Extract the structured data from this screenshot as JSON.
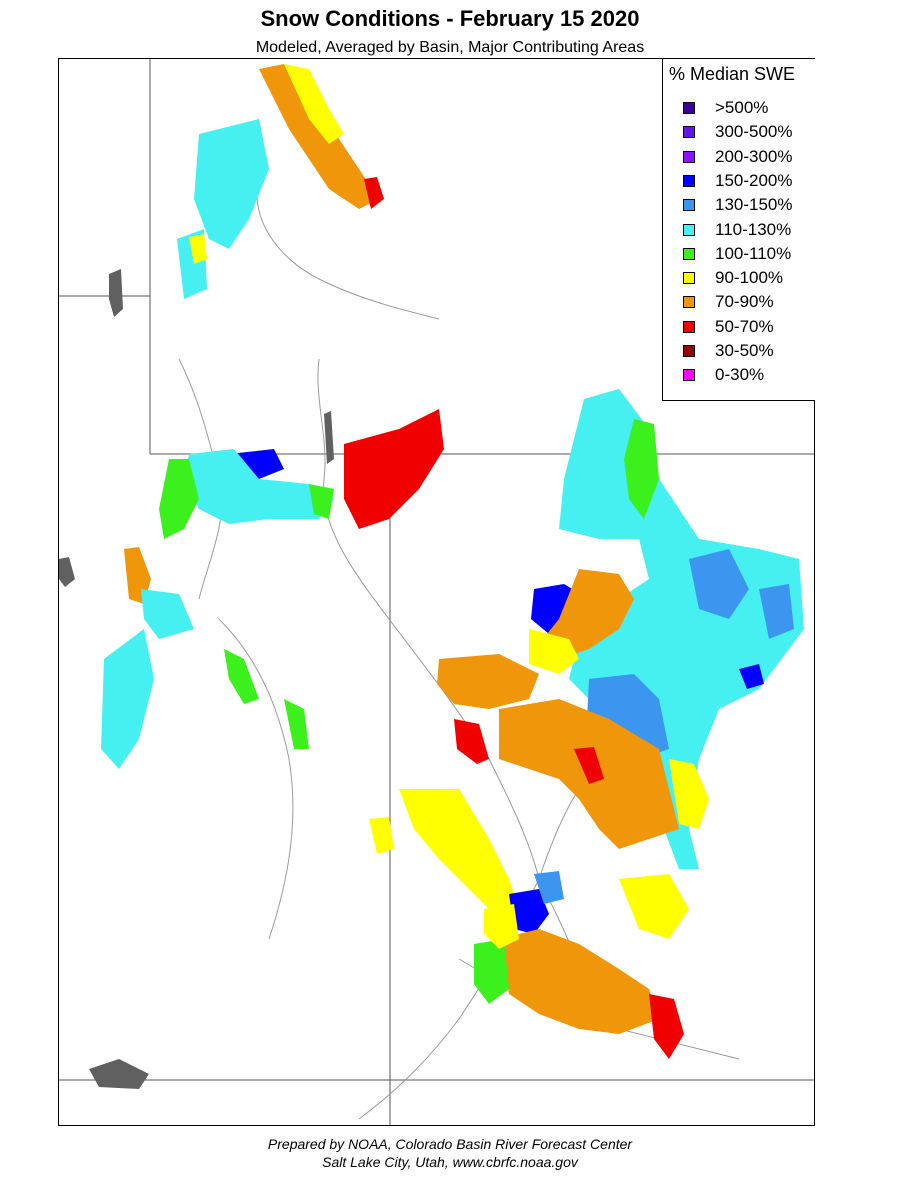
{
  "title": "Snow Conditions - February 15 2020",
  "subtitle": "Modeled, Averaged by Basin, Major Contributing Areas",
  "legend": {
    "title": "% Median SWE",
    "items": [
      {
        "label": ">500%",
        "color": "#3c0096"
      },
      {
        "label": "300-500%",
        "color": "#6414e6"
      },
      {
        "label": "200-300%",
        "color": "#8c14ff"
      },
      {
        "label": "150-200%",
        "color": "#0000ff"
      },
      {
        "label": "130-150%",
        "color": "#3c96f0"
      },
      {
        "label": "110-130%",
        "color": "#46f0f0"
      },
      {
        "label": "100-110%",
        "color": "#3cf01e"
      },
      {
        "label": "90-100%",
        "color": "#ffff00"
      },
      {
        "label": "70-90%",
        "color": "#f0960a"
      },
      {
        "label": "50-70%",
        "color": "#f00000"
      },
      {
        "label": "30-50%",
        "color": "#960000"
      },
      {
        "label": "0-30%",
        "color": "#ff00ff"
      }
    ]
  },
  "footer": {
    "line1": "Prepared by NOAA, Colorado Basin River Forecast Center",
    "line2": "Salt Lake City, Utah, www.cbrfc.noaa.gov"
  }
}
